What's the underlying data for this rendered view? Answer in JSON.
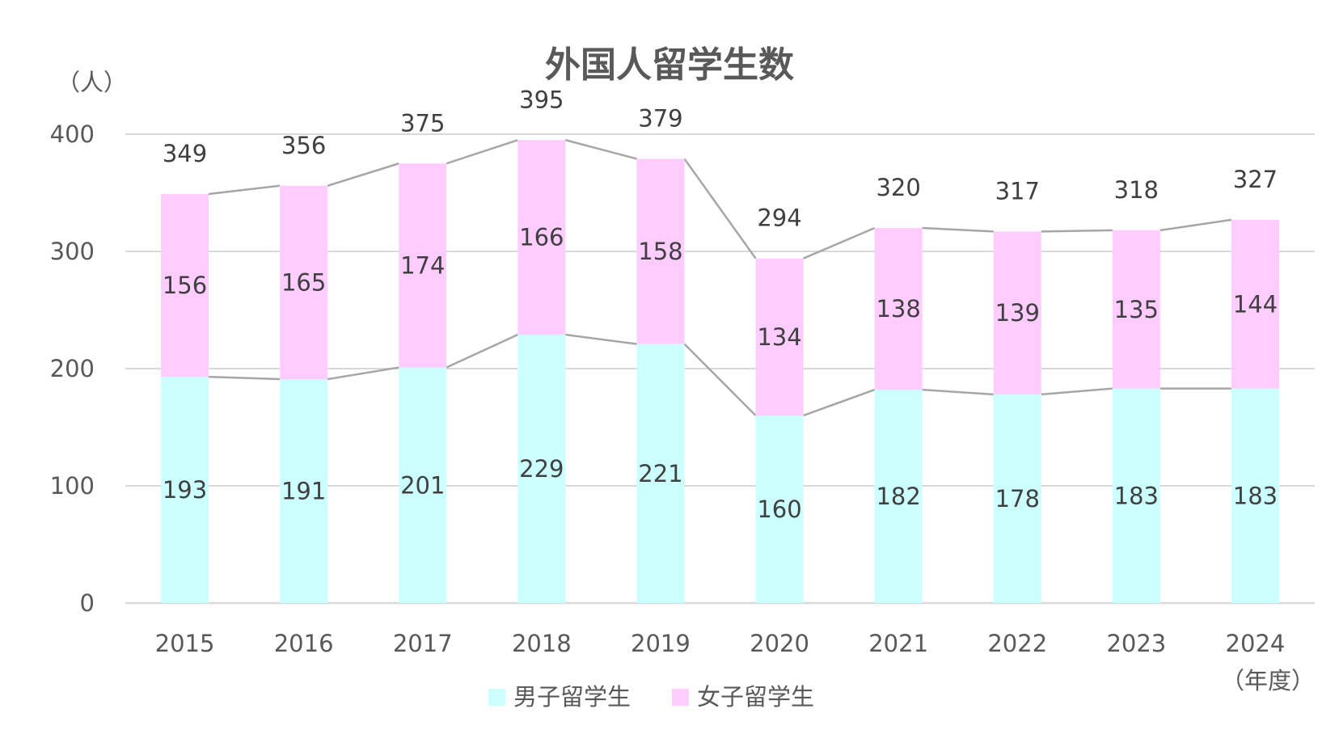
{
  "chart_data": {
    "type": "bar",
    "stacked": true,
    "title": "外国人留学生数",
    "ylabel": "（人）",
    "xlabel": "（年度）",
    "ylim": [
      0,
      400
    ],
    "yticks": [
      0,
      100,
      200,
      300,
      400
    ],
    "categories": [
      "2015",
      "2016",
      "2017",
      "2018",
      "2019",
      "2020",
      "2021",
      "2022",
      "2023",
      "2024"
    ],
    "series": [
      {
        "name": "男子留学生",
        "color": "#ccffff",
        "values": [
          193,
          191,
          201,
          229,
          221,
          160,
          182,
          178,
          183,
          183
        ]
      },
      {
        "name": "女子留学生",
        "color": "#ffccff",
        "values": [
          156,
          165,
          174,
          166,
          158,
          134,
          138,
          139,
          135,
          144
        ]
      }
    ],
    "totals": [
      349,
      356,
      375,
      395,
      379,
      294,
      320,
      317,
      318,
      327
    ],
    "grid": true,
    "series_lines": true,
    "legend_position": "bottom"
  }
}
